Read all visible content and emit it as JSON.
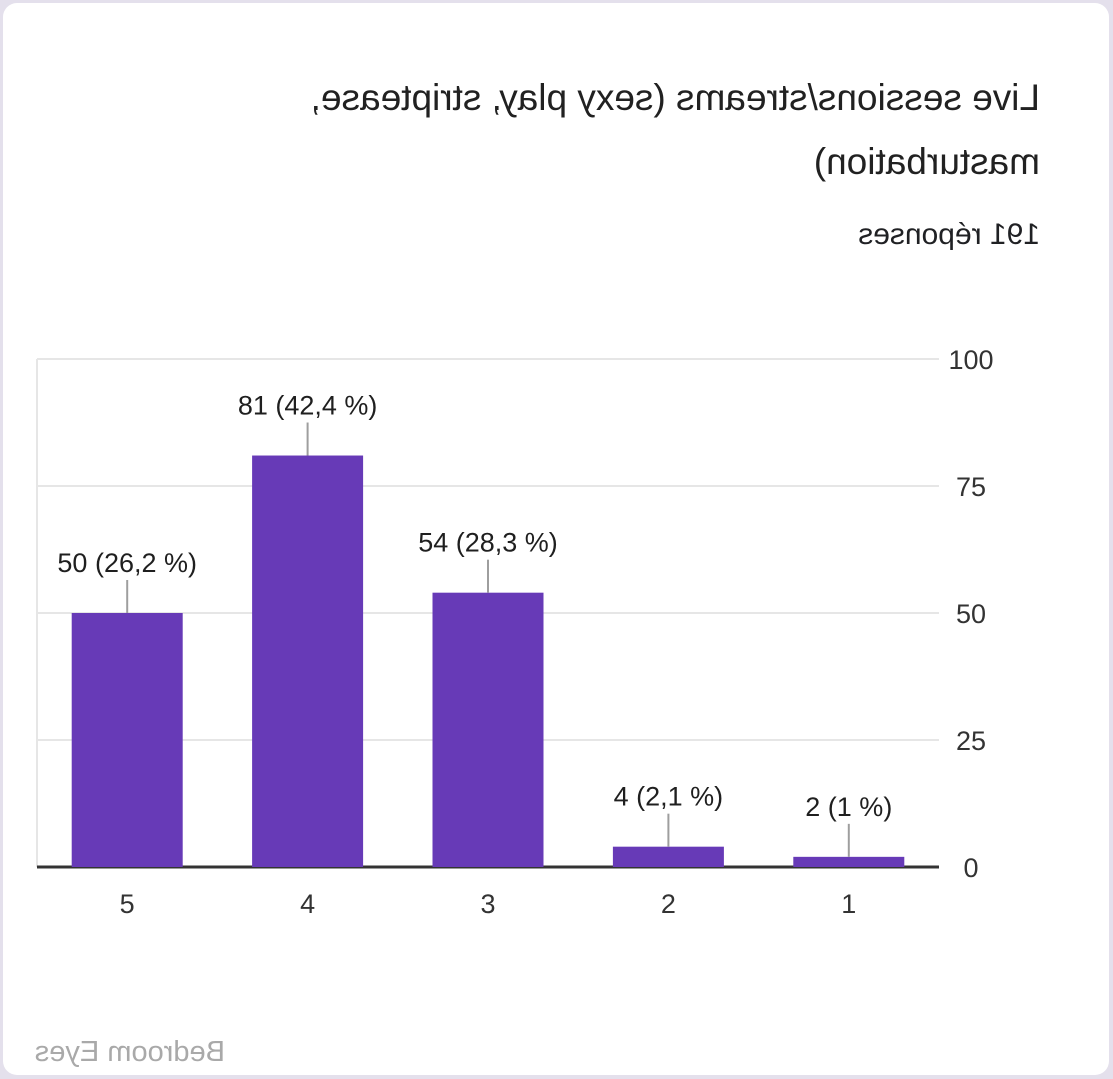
{
  "header": {
    "title": "Live sessions/streams (sexy play, striptease, masturbation)",
    "responses": "191 réponses"
  },
  "watermark": "Bedroom Eyes",
  "colors": {
    "bar": "#673ab7",
    "grid": "#e6e6e6",
    "axis": "#333333",
    "leader": "#9e9e9e"
  },
  "chart_data": {
    "type": "bar",
    "title": "Live sessions/streams (sexy play, striptease, masturbation)",
    "categories": [
      "1",
      "2",
      "3",
      "4",
      "5"
    ],
    "values": [
      2,
      4,
      54,
      81,
      50
    ],
    "data_labels": [
      "2 (1 %)",
      "4 (2,1 %)",
      "54 (28,3 %)",
      "81 (42,4 %)",
      "50 (26,2 %)"
    ],
    "ylim": [
      0,
      100
    ],
    "yticks": [
      "0",
      "25",
      "50",
      "75",
      "100"
    ],
    "xlabel": "",
    "ylabel": "",
    "grid": true,
    "mirrored": true
  }
}
